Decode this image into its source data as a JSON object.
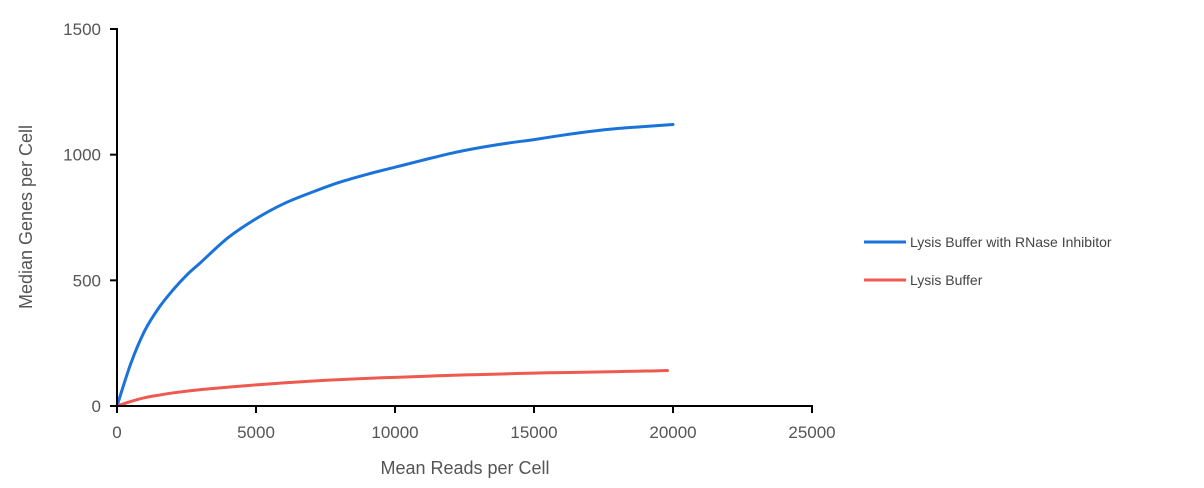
{
  "chart_data": {
    "type": "line",
    "title": "",
    "xlabel": "Mean Reads per Cell",
    "ylabel": "Median Genes per Cell",
    "xlim": [
      0,
      25000
    ],
    "ylim": [
      0,
      1500
    ],
    "xticks": [
      0,
      5000,
      10000,
      15000,
      20000,
      25000
    ],
    "yticks": [
      0,
      500,
      1000,
      1500
    ],
    "grid": false,
    "legend_position": "right",
    "series": [
      {
        "name": "Lysis Buffer with RNase Inhibitor",
        "color": "#1a73d9",
        "x": [
          0,
          500,
          1000,
          1500,
          2000,
          2500,
          3000,
          4000,
          5000,
          6000,
          7000,
          8000,
          9000,
          10000,
          11000,
          12000,
          13000,
          14000,
          15000,
          16000,
          17000,
          18000,
          19000,
          20000
        ],
        "y": [
          0,
          170,
          300,
          390,
          460,
          520,
          570,
          670,
          745,
          805,
          850,
          890,
          922,
          950,
          978,
          1005,
          1027,
          1045,
          1060,
          1077,
          1092,
          1104,
          1112,
          1120
        ]
      },
      {
        "name": "Lysis Buffer",
        "color": "#ef5a50",
        "x": [
          0,
          500,
          1000,
          1500,
          2000,
          3000,
          4000,
          5000,
          6000,
          7000,
          8000,
          9000,
          10000,
          11000,
          12000,
          13000,
          14000,
          15000,
          16000,
          17000,
          18000,
          19000,
          19800
        ],
        "y": [
          0,
          18,
          33,
          43,
          52,
          65,
          75,
          84,
          92,
          99,
          105,
          110,
          114,
          118,
          122,
          125,
          128,
          131,
          133,
          135,
          137,
          139,
          141
        ]
      }
    ]
  }
}
